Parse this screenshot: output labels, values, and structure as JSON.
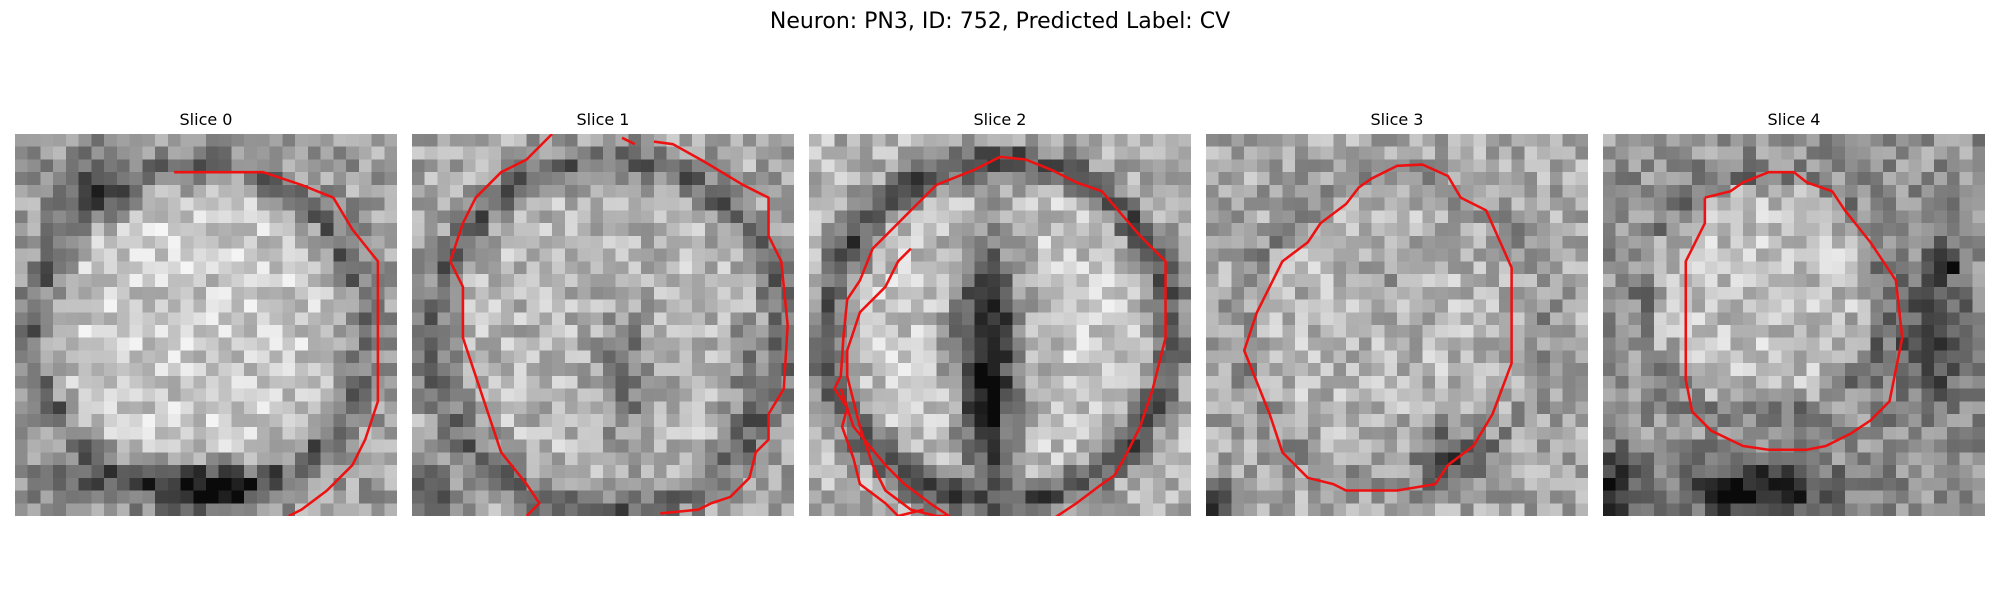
{
  "figure": {
    "title": "Neuron: PN3, ID: 752, Predicted Label: CV"
  },
  "colors": {
    "background": "#ffffff",
    "contour": "#ee1111",
    "grayscale_low": "#0a0a0a",
    "grayscale_high": "#f8f8f8"
  },
  "panels": [
    {
      "title": "Slice 0"
    },
    {
      "title": "Slice 1"
    },
    {
      "title": "Slice 2"
    },
    {
      "title": "Slice 3"
    },
    {
      "title": "Slice 4"
    }
  ]
}
